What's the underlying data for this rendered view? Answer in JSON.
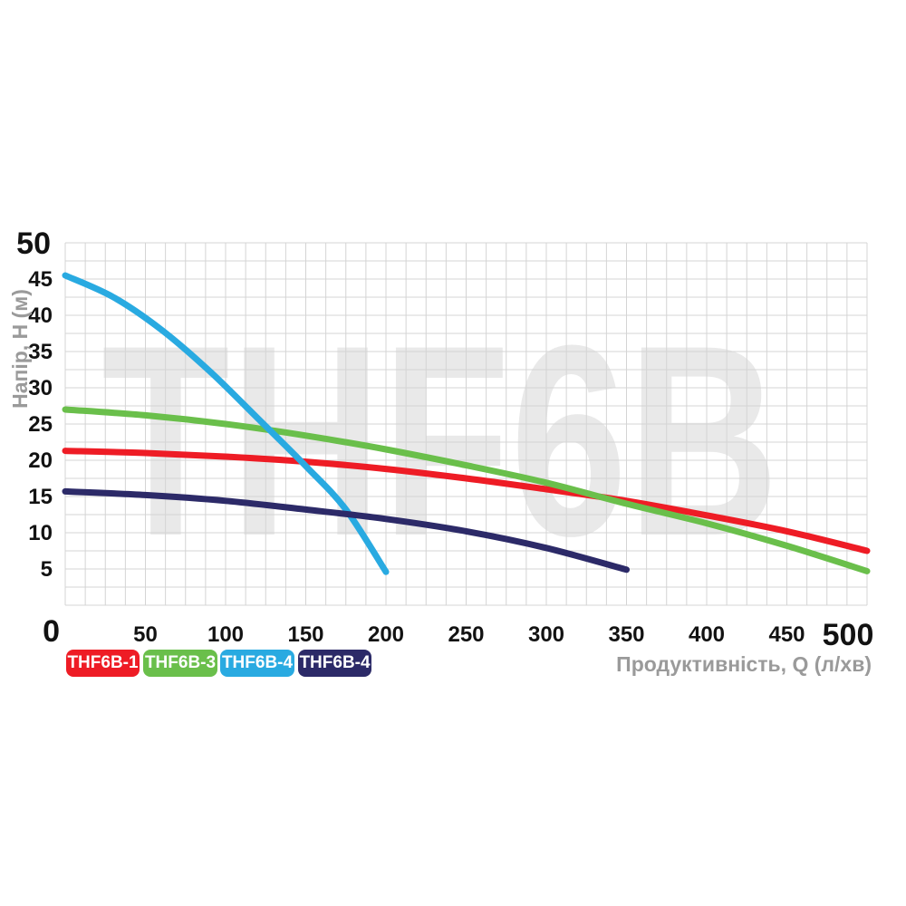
{
  "chart": {
    "watermark": "THF6B",
    "y_axis": {
      "title": "Напір, H (м)",
      "max_label": "50",
      "ticks": [
        45,
        40,
        35,
        30,
        25,
        20,
        15,
        10,
        5
      ]
    },
    "x_axis": {
      "title": "Продуктивність, Q (л/хв)",
      "origin_label": "0",
      "max_label": "500",
      "ticks": [
        50,
        100,
        150,
        200,
        250,
        300,
        350,
        400,
        450
      ]
    },
    "legend": [
      {
        "label": "THF6B-1",
        "color": "#ee1c25"
      },
      {
        "label": "THF6B-3",
        "color": "#6abf4b"
      },
      {
        "label": "THF6B-4",
        "color": "#29aae1"
      },
      {
        "label": "THF6B-4",
        "color": "#2c2a68"
      }
    ]
  },
  "chart_data": {
    "type": "line",
    "title": "THF6B pump performance curves",
    "xlabel": "Продуктивність, Q (л/хв)",
    "ylabel": "Напір, H (м)",
    "xlim": [
      0,
      500
    ],
    "ylim": [
      0,
      50
    ],
    "x_minor_step": 12.5,
    "y_minor_step": 2.5,
    "grid": true,
    "legend_position": "bottom-left",
    "series": [
      {
        "name": "THF6B-1",
        "color": "#ee1c25",
        "points": [
          [
            0,
            21.3
          ],
          [
            50,
            21.0
          ],
          [
            100,
            20.5
          ],
          [
            150,
            19.8
          ],
          [
            200,
            18.8
          ],
          [
            250,
            17.5
          ],
          [
            300,
            16.0
          ],
          [
            350,
            14.4
          ],
          [
            400,
            12.4
          ],
          [
            450,
            10.2
          ],
          [
            500,
            7.5
          ]
        ]
      },
      {
        "name": "THF6B-3",
        "color": "#6abf4b",
        "points": [
          [
            0,
            27.0
          ],
          [
            50,
            26.2
          ],
          [
            100,
            25.0
          ],
          [
            150,
            23.4
          ],
          [
            200,
            21.5
          ],
          [
            250,
            19.3
          ],
          [
            300,
            16.9
          ],
          [
            350,
            14.0
          ],
          [
            400,
            11.3
          ],
          [
            450,
            8.2
          ],
          [
            500,
            4.7
          ]
        ]
      },
      {
        "name": "THF6B-4",
        "color": "#29aae1",
        "points": [
          [
            0,
            45.5
          ],
          [
            30,
            42.5
          ],
          [
            60,
            38.0
          ],
          [
            90,
            32.3
          ],
          [
            120,
            25.8
          ],
          [
            150,
            19.2
          ],
          [
            175,
            13.2
          ],
          [
            200,
            4.6
          ]
        ]
      },
      {
        "name": "THF6B-4",
        "color": "#2c2a68",
        "points": [
          [
            0,
            15.7
          ],
          [
            50,
            15.2
          ],
          [
            100,
            14.4
          ],
          [
            150,
            13.2
          ],
          [
            200,
            11.9
          ],
          [
            250,
            10.2
          ],
          [
            300,
            7.9
          ],
          [
            350,
            4.9
          ]
        ]
      }
    ]
  },
  "colors": {
    "grid": "#d4d4d4",
    "tick_text": "#121212",
    "axis_title": "#9a9a9a",
    "watermark": "#e9e9e9",
    "background": "#ffffff"
  }
}
